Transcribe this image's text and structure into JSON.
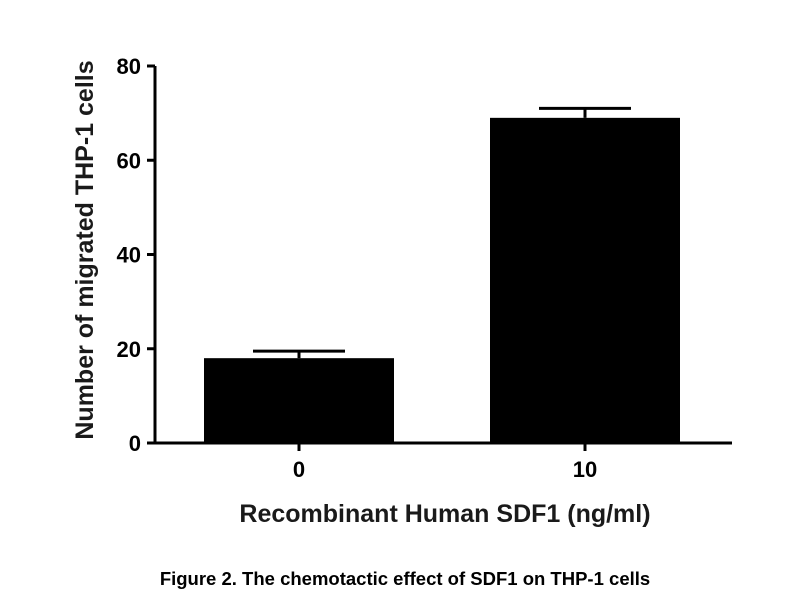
{
  "caption": "Figure 2. The chemotactic effect of SDF1 on THP-1 cells",
  "chart_data": {
    "type": "bar",
    "title": "",
    "xlabel": "Recombinant Human SDF1 (ng/ml)",
    "ylabel": "Number of migrated THP-1 cells",
    "categories": [
      "0",
      "10"
    ],
    "values": [
      18,
      69
    ],
    "error_upper": [
      19.5,
      71
    ],
    "ylim": [
      0,
      80
    ],
    "yticks": [
      "0",
      "20",
      "40",
      "60",
      "80"
    ],
    "grid": false,
    "bar_color": "#000000"
  }
}
